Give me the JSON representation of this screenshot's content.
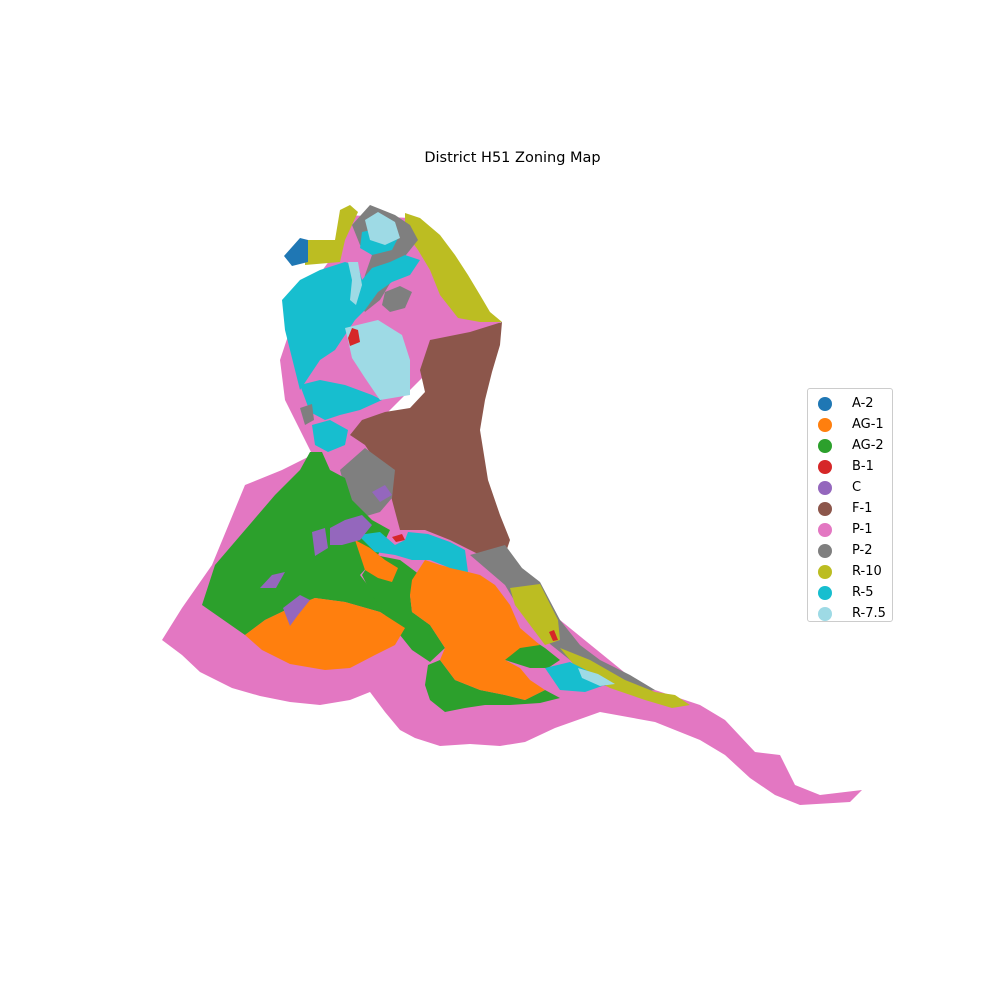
{
  "title": "District H51 Zoning Map",
  "zones": [
    {
      "code": "A-2",
      "color": "#1f77b4"
    },
    {
      "code": "AG-1",
      "color": "#ff7f0e"
    },
    {
      "code": "AG-2",
      "color": "#2ca02c"
    },
    {
      "code": "B-1",
      "color": "#d62728"
    },
    {
      "code": "C",
      "color": "#9467bd"
    },
    {
      "code": "F-1",
      "color": "#8c564b"
    },
    {
      "code": "P-1",
      "color": "#e377c2"
    },
    {
      "code": "P-2",
      "color": "#7f7f7f"
    },
    {
      "code": "R-10",
      "color": "#bcbd22"
    },
    {
      "code": "R-5",
      "color": "#17becf"
    },
    {
      "code": "R-7.5",
      "color": "#9edae5"
    }
  ]
}
